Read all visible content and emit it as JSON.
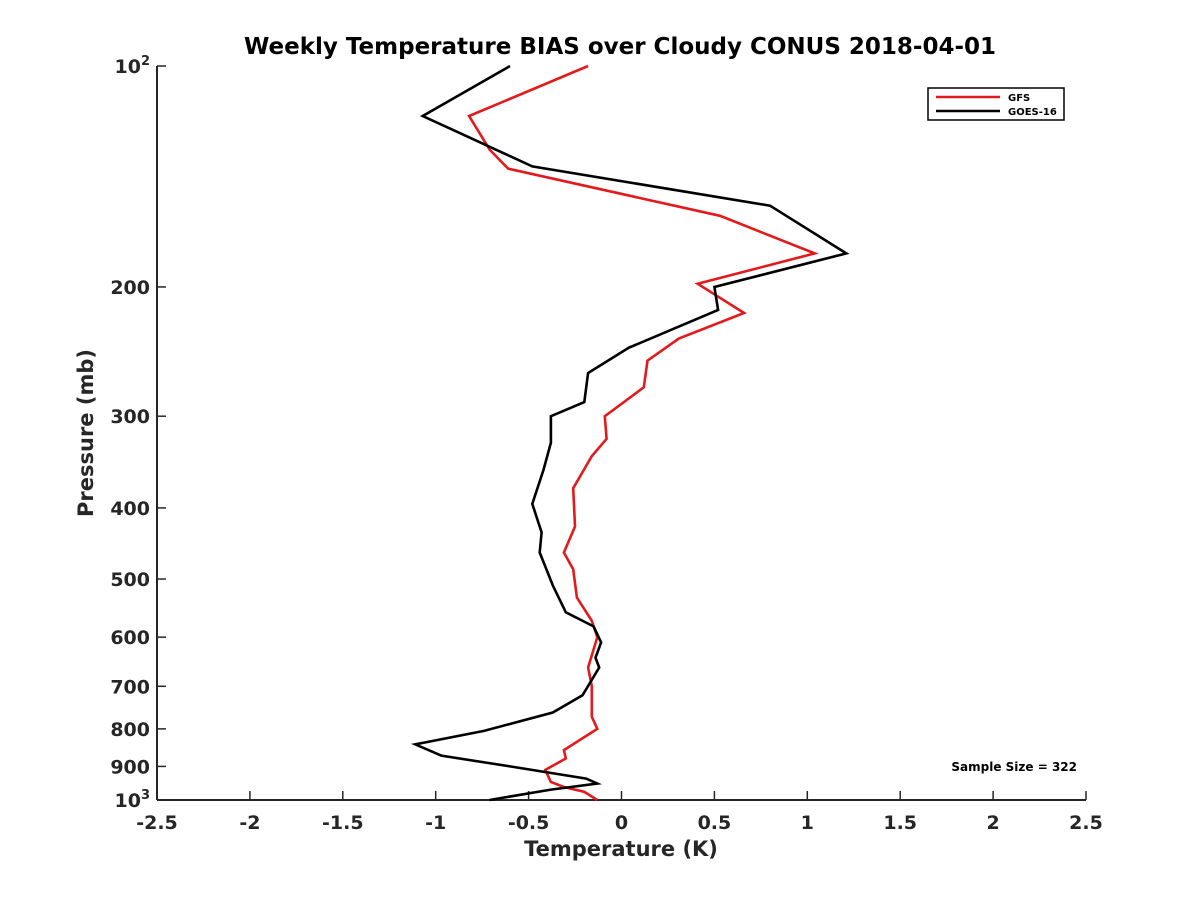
{
  "chart_data": {
    "type": "line",
    "title": "Weekly Temperature BIAS over Cloudy CONUS 2018-04-01",
    "xlabel": "Temperature (K)",
    "ylabel": "Pressure (mb)",
    "xlim": [
      -2.5,
      2.5
    ],
    "ylim": [
      100,
      1000
    ],
    "yscale": "log",
    "y_reversed": true,
    "grid": false,
    "legend_position": "top-right",
    "x_ticks": [
      "-2.5",
      "-2",
      "-1.5",
      "-1",
      "-0.5",
      "0",
      "0.5",
      "1",
      "1.5",
      "2",
      "2.5"
    ],
    "y_ticks": [
      {
        "value": 100,
        "base": "10",
        "exp": "2"
      },
      {
        "value": 200,
        "label": "200"
      },
      {
        "value": 300,
        "label": "300"
      },
      {
        "value": 400,
        "label": "400"
      },
      {
        "value": 500,
        "label": "500"
      },
      {
        "value": 600,
        "label": "600"
      },
      {
        "value": 700,
        "label": "700"
      },
      {
        "value": 800,
        "label": "800"
      },
      {
        "value": 900,
        "label": "900"
      },
      {
        "value": 1000,
        "base": "10",
        "exp": "3"
      }
    ],
    "series": [
      {
        "name": "GFS",
        "color": "#e31a1c",
        "points": [
          [
            -0.18,
            100
          ],
          [
            -0.82,
            117
          ],
          [
            -0.71,
            130
          ],
          [
            -0.61,
            138
          ],
          [
            0.53,
            160
          ],
          [
            1.04,
            180
          ],
          [
            0.41,
            198
          ],
          [
            0.66,
            217
          ],
          [
            0.31,
            235
          ],
          [
            0.14,
            252
          ],
          [
            0.12,
            274
          ],
          [
            -0.09,
            300
          ],
          [
            -0.08,
            322
          ],
          [
            -0.16,
            340
          ],
          [
            -0.26,
            376
          ],
          [
            -0.25,
            424
          ],
          [
            -0.31,
            460
          ],
          [
            -0.26,
            485
          ],
          [
            -0.24,
            530
          ],
          [
            -0.16,
            570
          ],
          [
            -0.13,
            600
          ],
          [
            -0.18,
            660
          ],
          [
            -0.16,
            700
          ],
          [
            -0.16,
            770
          ],
          [
            -0.13,
            800
          ],
          [
            -0.31,
            855
          ],
          [
            -0.3,
            878
          ],
          [
            -0.41,
            910
          ],
          [
            -0.38,
            945
          ],
          [
            -0.31,
            960
          ],
          [
            -0.2,
            975
          ],
          [
            -0.13,
            1000
          ]
        ]
      },
      {
        "name": "GOES-16",
        "color": "#000000",
        "points": [
          [
            -0.6,
            100
          ],
          [
            -1.07,
            117
          ],
          [
            -0.48,
            137
          ],
          [
            0.8,
            155
          ],
          [
            1.21,
            180
          ],
          [
            0.5,
            200
          ],
          [
            0.52,
            215
          ],
          [
            0.04,
            242
          ],
          [
            -0.18,
            262
          ],
          [
            -0.2,
            287
          ],
          [
            -0.38,
            300
          ],
          [
            -0.38,
            326
          ],
          [
            -0.42,
            355
          ],
          [
            -0.48,
            395
          ],
          [
            -0.43,
            432
          ],
          [
            -0.44,
            460
          ],
          [
            -0.37,
            510
          ],
          [
            -0.3,
            555
          ],
          [
            -0.15,
            580
          ],
          [
            -0.11,
            610
          ],
          [
            -0.14,
            640
          ],
          [
            -0.12,
            660
          ],
          [
            -0.21,
            720
          ],
          [
            -0.37,
            760
          ],
          [
            -0.74,
            805
          ],
          [
            -1.11,
            840
          ],
          [
            -0.97,
            870
          ],
          [
            -0.6,
            900
          ],
          [
            -0.19,
            935
          ],
          [
            -0.13,
            950
          ],
          [
            -0.38,
            968
          ],
          [
            -0.71,
            1000
          ]
        ]
      }
    ],
    "annotation": "Sample Size = 322"
  }
}
